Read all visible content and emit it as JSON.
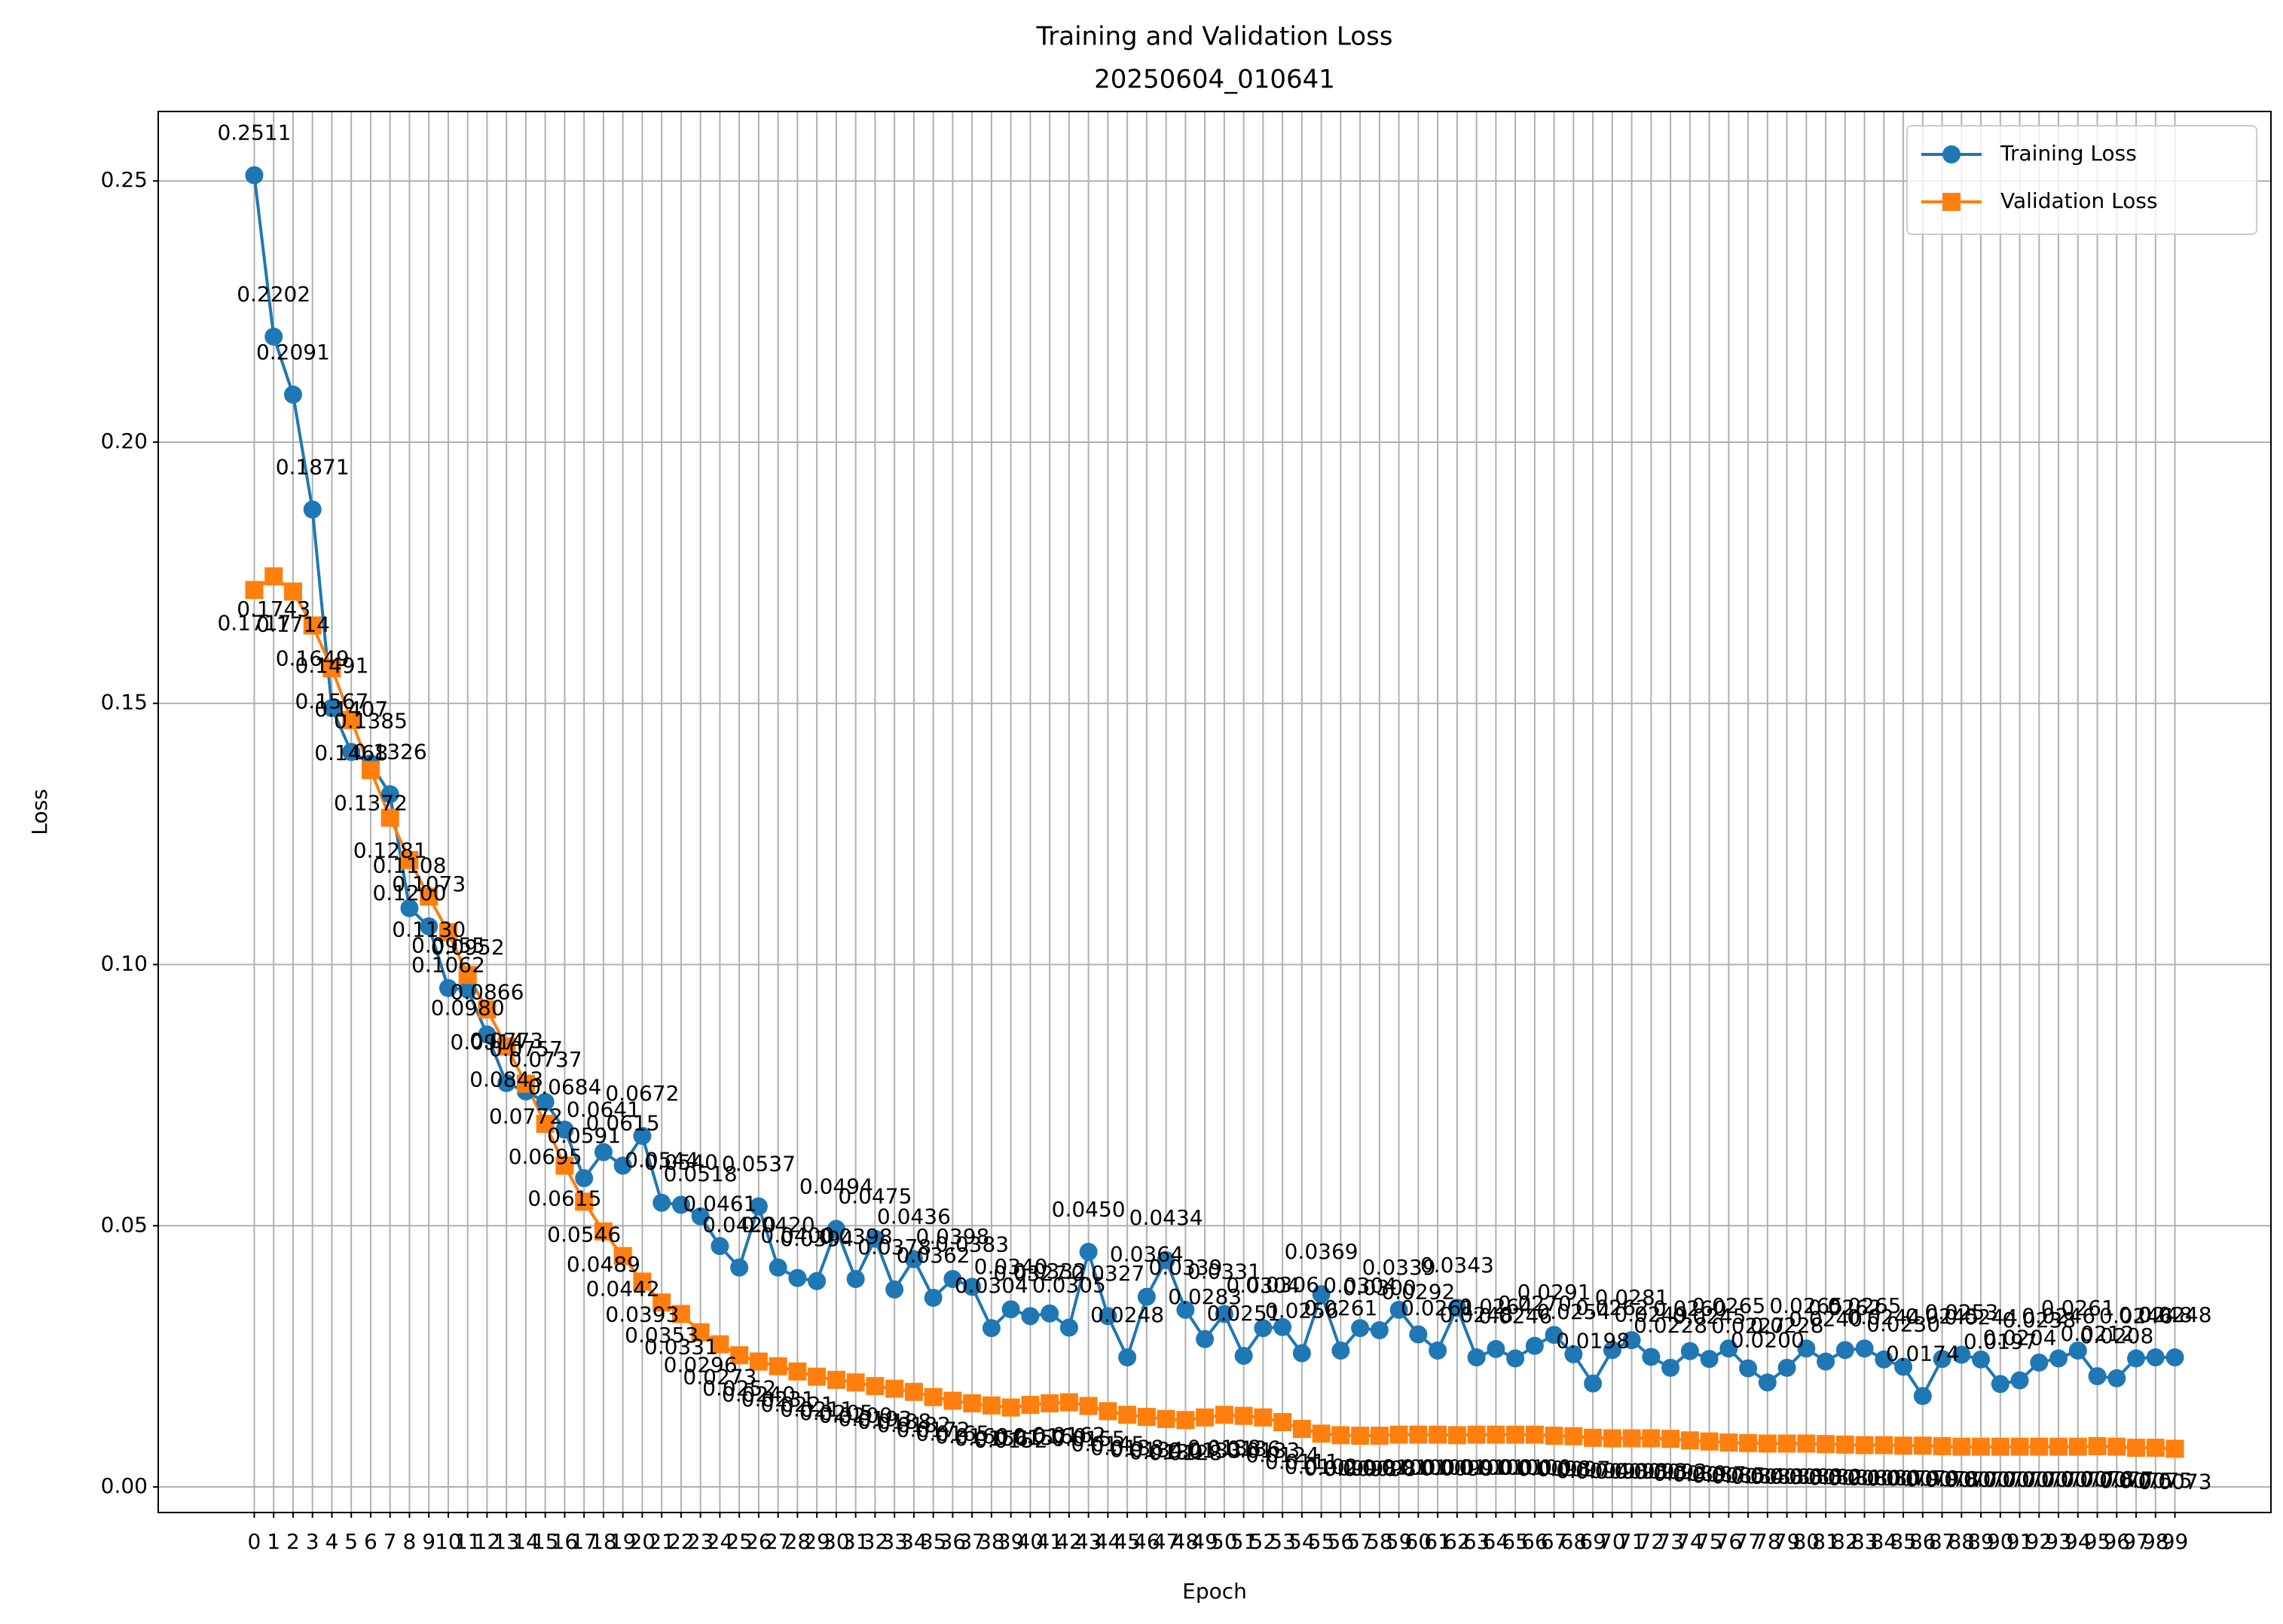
{
  "chart_data": {
    "type": "line",
    "title": "Training and Validation Loss",
    "subtitle": "20250604_010641",
    "x_label": "Epoch",
    "y_label": "Loss",
    "x": [
      0,
      1,
      2,
      3,
      4,
      5,
      6,
      7,
      8,
      9,
      10,
      11,
      12,
      13,
      14,
      15,
      16,
      17,
      18,
      19,
      20,
      21,
      22,
      23,
      24,
      25,
      26,
      27,
      28,
      29,
      30,
      31,
      32,
      33,
      34,
      35,
      36,
      37,
      38,
      39,
      40,
      41,
      42,
      43,
      44,
      45,
      46,
      47,
      48,
      49,
      50,
      51,
      52,
      53,
      54,
      55,
      56,
      57,
      58,
      59,
      60,
      61,
      62,
      63,
      64,
      65,
      66,
      67,
      68,
      69,
      70,
      71,
      72,
      73,
      74,
      75,
      76,
      77,
      78,
      79,
      80,
      81,
      82,
      83,
      84,
      85,
      86,
      87,
      88,
      89,
      90,
      91,
      92,
      93,
      94,
      95,
      96,
      97,
      98,
      99
    ],
    "xlim": [
      -4.95,
      103.95
    ],
    "xticks": [
      0,
      1,
      2,
      3,
      4,
      5,
      6,
      7,
      8,
      9,
      10,
      11,
      12,
      13,
      14,
      15,
      16,
      17,
      18,
      19,
      20,
      21,
      22,
      23,
      24,
      25,
      26,
      27,
      28,
      29,
      30,
      31,
      32,
      33,
      34,
      35,
      36,
      37,
      38,
      39,
      40,
      41,
      42,
      43,
      44,
      45,
      46,
      47,
      48,
      49,
      50,
      51,
      52,
      53,
      54,
      55,
      56,
      57,
      58,
      59,
      60,
      61,
      62,
      63,
      64,
      65,
      66,
      67,
      68,
      69,
      70,
      71,
      72,
      73,
      74,
      75,
      76,
      77,
      78,
      79,
      80,
      81,
      82,
      83,
      84,
      85,
      86,
      87,
      88,
      89,
      90,
      91,
      92,
      93,
      94,
      95,
      96,
      97,
      98,
      99
    ],
    "ylim": [
      -0.0049,
      0.2633
    ],
    "yticks": [
      {
        "value": 0,
        "label": "0.00"
      },
      {
        "value": 0.05,
        "label": "0.05"
      },
      {
        "value": 0.1,
        "label": "0.10"
      },
      {
        "value": 0.15,
        "label": "0.15"
      },
      {
        "value": 0.2,
        "label": "0.20"
      },
      {
        "value": 0.25,
        "label": "0.25"
      }
    ],
    "grid": true,
    "legend": "upper right",
    "series": [
      {
        "name": "Training Loss",
        "color": "#1f77b4",
        "marker": "circle",
        "values": [
          0.2511,
          0.2202,
          0.2091,
          0.1871,
          0.1491,
          0.1407,
          0.1385,
          0.1326,
          0.1108,
          0.1073,
          0.0955,
          0.0952,
          0.0866,
          0.0773,
          0.0757,
          0.0737,
          0.0684,
          0.0591,
          0.0641,
          0.0615,
          0.0672,
          0.0544,
          0.054,
          0.0518,
          0.0461,
          0.042,
          0.0537,
          0.042,
          0.04,
          0.0394,
          0.0494,
          0.0398,
          0.0475,
          0.0378,
          0.0436,
          0.0362,
          0.0398,
          0.0383,
          0.0304,
          0.034,
          0.0327,
          0.0332,
          0.0305,
          0.045,
          0.0327,
          0.0248,
          0.0364,
          0.0434,
          0.0339,
          0.0283,
          0.0331,
          0.0251,
          0.0304,
          0.0306,
          0.0256,
          0.0369,
          0.0261,
          0.0304,
          0.03,
          0.0339,
          0.0292,
          0.0261,
          0.0343,
          0.0248,
          0.0264,
          0.0246,
          0.027,
          0.0291,
          0.0254,
          0.0198,
          0.0262,
          0.0281,
          0.0249,
          0.0228,
          0.026,
          0.0245,
          0.0265,
          0.0227,
          0.02,
          0.0228,
          0.0265,
          0.024,
          0.0262,
          0.0265,
          0.0244,
          0.023,
          0.0174,
          0.0245,
          0.0253,
          0.0244,
          0.0197,
          0.0204,
          0.0238,
          0.0246,
          0.0261,
          0.0212,
          0.0208,
          0.0246,
          0.0248,
          0.0248
        ],
        "value_labels": [
          "0.2511",
          "0.2202",
          "0.2091",
          "0.1871",
          "0.1491",
          "0.1407",
          "0.1385",
          "0.1326",
          "0.1108",
          "0.1073",
          "0.0955",
          "0.0952",
          "0.0866",
          "0.0773",
          "0.0757",
          "0.0737",
          "0.0684",
          "0.0591",
          "0.0641",
          "0.0615",
          "0.0672",
          "0.0544",
          "0.0540",
          "0.0518",
          "0.0461",
          "0.0420",
          "0.0537",
          "0.0420",
          "0.0400",
          "0.0394",
          "0.0494",
          "0.0398",
          "0.0475",
          "0.0378",
          "0.0436",
          "0.0362",
          "0.0398",
          "0.0383",
          "0.0304",
          "0.0340",
          "0.0327",
          "0.0332",
          "0.0305",
          "0.0450",
          "0.0327",
          "0.0248",
          "0.0364",
          "0.0434",
          "0.0339",
          "0.0283",
          "0.0331",
          "0.0251",
          "0.0304",
          "0.0306",
          "0.0256",
          "0.0369",
          "0.0261",
          "0.0304",
          "0.0300",
          "0.0339",
          "0.0292",
          "0.0261",
          "0.0343",
          "0.0248",
          "0.0264",
          "0.0246",
          "0.0270",
          "0.0291",
          "0.0254",
          "0.0198",
          "0.0262",
          "0.0281",
          "0.0249",
          "0.0228",
          "0.0260",
          "0.0245",
          "0.0265",
          "0.0227",
          "0.0200",
          "0.0228",
          "0.0265",
          "0.0240",
          "0.0262",
          "0.0265",
          "0.0244",
          "0.0230",
          "0.0174",
          "0.0245",
          "0.0253",
          "0.0244",
          "0.0197",
          "0.0204",
          "0.0238",
          "0.0246",
          "0.0261",
          "0.0212",
          "0.0208",
          "0.0246",
          "0.0248",
          "0.0248"
        ]
      },
      {
        "name": "Validation Loss",
        "color": "#ff7f0e",
        "marker": "square",
        "values": [
          0.1717,
          0.1743,
          0.1714,
          0.1649,
          0.1567,
          0.1468,
          0.1372,
          0.1281,
          0.12,
          0.113,
          0.1062,
          0.098,
          0.0914,
          0.0843,
          0.0772,
          0.0695,
          0.0615,
          0.0546,
          0.0489,
          0.0442,
          0.0393,
          0.0353,
          0.0331,
          0.0296,
          0.0273,
          0.0252,
          0.024,
          0.0231,
          0.0221,
          0.0211,
          0.0205,
          0.02,
          0.0193,
          0.0188,
          0.0182,
          0.0172,
          0.0165,
          0.016,
          0.0156,
          0.0152,
          0.0157,
          0.016,
          0.0162,
          0.0155,
          0.0145,
          0.0138,
          0.0134,
          0.013,
          0.0128,
          0.0133,
          0.0138,
          0.0136,
          0.0133,
          0.0124,
          0.0111,
          0.0102,
          0.0099,
          0.0098,
          0.0098,
          0.01,
          0.01,
          0.01,
          0.0099,
          0.01,
          0.01,
          0.01,
          0.01,
          0.0098,
          0.0097,
          0.0094,
          0.0093,
          0.0093,
          0.0093,
          0.0092,
          0.0089,
          0.0087,
          0.0085,
          0.0084,
          0.0083,
          0.0083,
          0.0083,
          0.0082,
          0.0081,
          0.008,
          0.008,
          0.0079,
          0.0079,
          0.0078,
          0.0077,
          0.0077,
          0.0077,
          0.0077,
          0.0077,
          0.0077,
          0.0077,
          0.0078,
          0.0077,
          0.0075,
          0.0075,
          0.0073
        ],
        "value_labels": [
          "0.1717",
          "0.1743",
          "0.1714",
          "0.1649",
          "0.1567",
          "0.1468",
          "0.1372",
          "0.1281",
          "0.1200",
          "0.1130",
          "0.1062",
          "0.0980",
          "0.0914",
          "0.0843",
          "0.0772",
          "0.0695",
          "0.0615",
          "0.0546",
          "0.0489",
          "0.0442",
          "0.0393",
          "0.0353",
          "0.0331",
          "0.0296",
          "0.0273",
          "0.0252",
          "0.0240",
          "0.0231",
          "0.0221",
          "0.0211",
          "0.0205",
          "0.0200",
          "0.0193",
          "0.0188",
          "0.0182",
          "0.0172",
          "0.0165",
          "0.0160",
          "0.0156",
          "0.0152",
          "0.0157",
          "0.0160",
          "0.0162",
          "0.0155",
          "0.0145",
          "0.0138",
          "0.0134",
          "0.0130",
          "0.0128",
          "0.0133",
          "0.0138",
          "0.0136",
          "0.0133",
          "0.0124",
          "0.0111",
          "0.0102",
          "0.0099",
          "0.0098",
          "0.0098",
          "0.0100",
          "0.0100",
          "0.0100",
          "0.0099",
          "0.0100",
          "0.0100",
          "0.0100",
          "0.0100",
          "0.0098",
          "0.0097",
          "0.0094",
          "0.0093",
          "0.0093",
          "0.0093",
          "0.0092",
          "0.0089",
          "0.0087",
          "0.0085",
          "0.0084",
          "0.0083",
          "0.0083",
          "0.0083",
          "0.0082",
          "0.0081",
          "0.0080",
          "0.0080",
          "0.0079",
          "0.0079",
          "0.0078",
          "0.0077",
          "0.0077",
          "0.0077",
          "0.0077",
          "0.0077",
          "0.0077",
          "0.0077",
          "0.0078",
          "0.0077",
          "0.0075",
          "0.0075",
          "0.0073"
        ]
      }
    ]
  }
}
